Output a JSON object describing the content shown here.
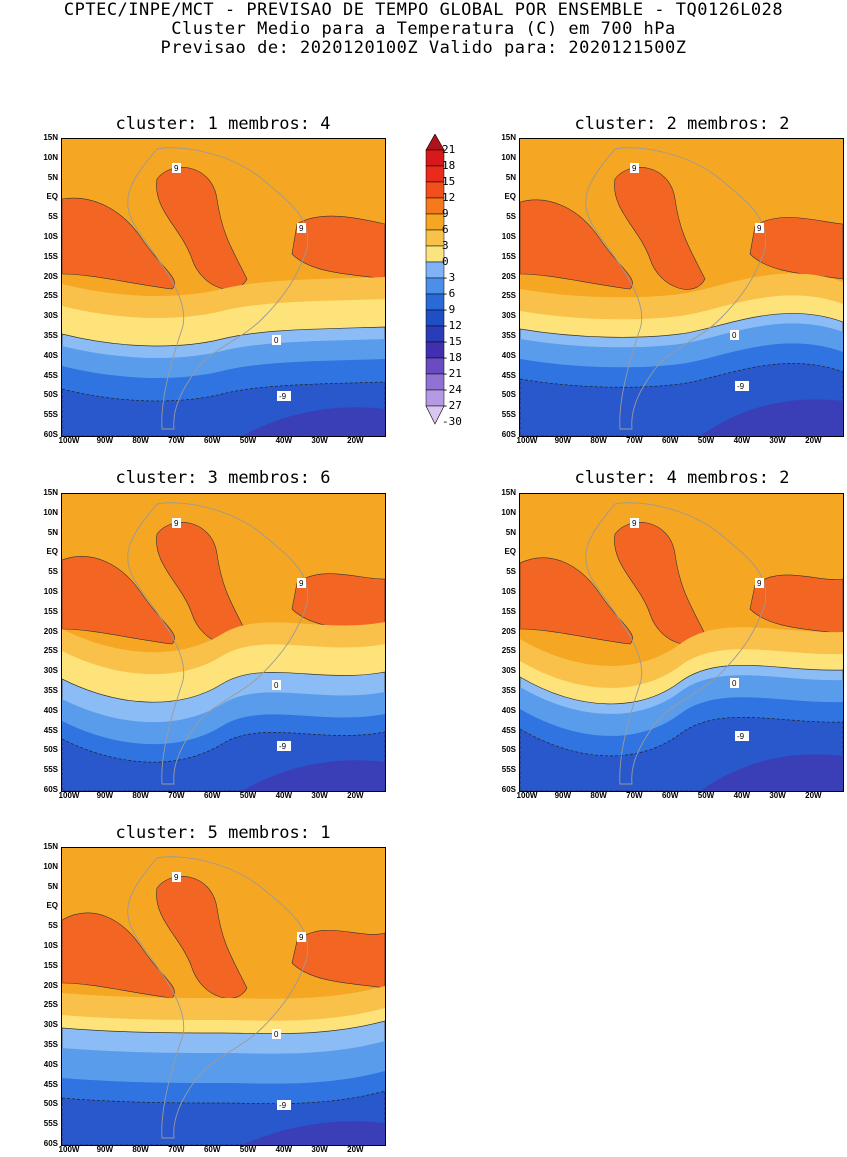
{
  "header": {
    "line1": "CPTEC/INPE/MCT - PREVISAO DE TEMPO GLOBAL POR ENSEMBLE - TQ0126L028",
    "line2": "Cluster Medio para a Temperatura (C) em 700 hPa",
    "line3": "Previsao de: 2020120100Z   Valido para: 2020121500Z"
  },
  "panels": [
    {
      "cluster": "1",
      "membros": "4",
      "title": "cluster: 1   membros: 4"
    },
    {
      "cluster": "2",
      "membros": "2",
      "title": "cluster: 2   membros: 2"
    },
    {
      "cluster": "3",
      "membros": "6",
      "title": "cluster: 3   membros: 6"
    },
    {
      "cluster": "4",
      "membros": "2",
      "title": "cluster: 4   membros: 2"
    },
    {
      "cluster": "5",
      "membros": "1",
      "title": "cluster: 5   membros: 1"
    }
  ],
  "axes": {
    "lat_labels": [
      "15N",
      "10N",
      "5N",
      "EQ",
      "5S",
      "10S",
      "15S",
      "20S",
      "25S",
      "30S",
      "35S",
      "40S",
      "45S",
      "50S",
      "55S",
      "60S"
    ],
    "lon_labels": [
      "100W",
      "90W",
      "80W",
      "70W",
      "60W",
      "50W",
      "40W",
      "30W",
      "20W"
    ]
  },
  "contour_labels": {
    "warm": "9",
    "zero": "0",
    "cold": "-9"
  },
  "colorbar": {
    "levels": [
      "21",
      "18",
      "15",
      "12",
      "9",
      "6",
      "3",
      "0",
      "-3",
      "-6",
      "-9",
      "-12",
      "-15",
      "-18",
      "-21",
      "-24",
      "-27",
      "-30"
    ],
    "colors": [
      "#b0121b",
      "#d7191c",
      "#ea2a1a",
      "#f24f1c",
      "#f7791d",
      "#f5a623",
      "#f8c24a",
      "#fbe37e",
      "#7fb3f5",
      "#4a90e8",
      "#2a6ad6",
      "#1f4fc4",
      "#2a3cb8",
      "#4030b0",
      "#6a4cc2",
      "#8f72d4",
      "#b49ae4",
      "#d9c7f2"
    ]
  },
  "colors": {
    "warm12": "#f26522",
    "warm6": "#f5a623",
    "warm3": "#f9c04a",
    "warm0": "#fde37a",
    "cold0": "#8bbcf5",
    "cold3": "#5a9cec",
    "cold6": "#2f74e0",
    "cold9": "#2858cc",
    "cold12": "#3a3fb8"
  }
}
